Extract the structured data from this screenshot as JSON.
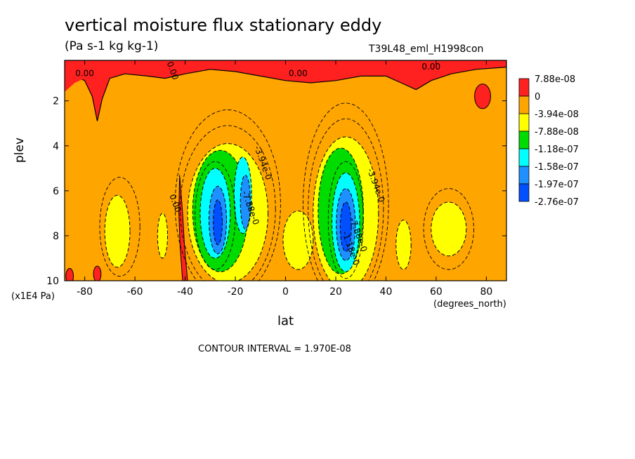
{
  "header": {
    "title": "vertical moisture flux stationary eddy",
    "units": "(Pa s-1 kg kg-1)",
    "run": "T39L48_eml_H1998con"
  },
  "footer": {
    "contour_interval": "CONTOUR INTERVAL = 1.970E-08"
  },
  "chart_data": {
    "type": "heatmap",
    "title": "vertical moisture flux stationary eddy",
    "subtitle": "(Pa s-1 kg kg-1)",
    "xlabel": "lat",
    "x_units": "(degrees_north)",
    "ylabel": "plev",
    "y_units": "(x1E4 Pa)",
    "xlim": [
      -88,
      88
    ],
    "ylim": [
      10,
      0.2
    ],
    "x_ticks": [
      -80,
      -60,
      -40,
      -20,
      0,
      20,
      40,
      60,
      80
    ],
    "x_tick_labels": [
      "-80",
      "-60",
      "-40",
      "-20",
      "0",
      "20",
      "40",
      "60",
      "80"
    ],
    "y_ticks": [
      2,
      4,
      6,
      8,
      10
    ],
    "y_tick_labels": [
      "2",
      "4",
      "6",
      "8",
      "10"
    ],
    "legend": {
      "placement": "right",
      "labels": [
        "7.88e-08",
        "0",
        "-3.94e-08",
        "-7.88e-08",
        "-1.18e-07",
        "-1.58e-07",
        "-1.97e-07",
        "-2.76e-07"
      ],
      "colors": [
        "#ff2020",
        "#ffa500",
        "#ffff00",
        "#00dc00",
        "#00ffff",
        "#1e90ff",
        "#0050ff"
      ]
    },
    "contour_labels": [
      {
        "text": "0.00",
        "lat": -80,
        "plev": 0.9
      },
      {
        "text": "0.00",
        "lat": -46,
        "plev": 0.7
      },
      {
        "text": "0.00",
        "lat": 5,
        "plev": 0.9
      },
      {
        "text": "0.00",
        "lat": 58,
        "plev": 0.6
      },
      {
        "text": "0.00",
        "lat": -45,
        "plev": 6.6
      },
      {
        "text": "-3.94e-0",
        "lat": -10,
        "plev": 4.8
      },
      {
        "text": "-7.88e-0",
        "lat": -15,
        "plev": 6.8
      },
      {
        "text": "-3.94e-0",
        "lat": 35,
        "plev": 5.8
      },
      {
        "text": "-7.88e-0",
        "lat": 28,
        "plev": 8.0
      },
      {
        "text": "-1.18e-0",
        "lat": 25,
        "plev": 8.6
      }
    ],
    "features": [
      {
        "name": "upper positive band",
        "level_index": 0,
        "region": "plev 0.2-1.5 across most latitudes"
      },
      {
        "name": "southern hemisphere upward flux core",
        "level_index": 6,
        "center_lat": -26,
        "center_plev": 7.3,
        "min_value": -2.76e-07
      },
      {
        "name": "northern hemisphere upward flux core",
        "level_index": 6,
        "center_lat": 24,
        "center_plev": 7.5,
        "min_value": -2.76e-07
      }
    ]
  }
}
